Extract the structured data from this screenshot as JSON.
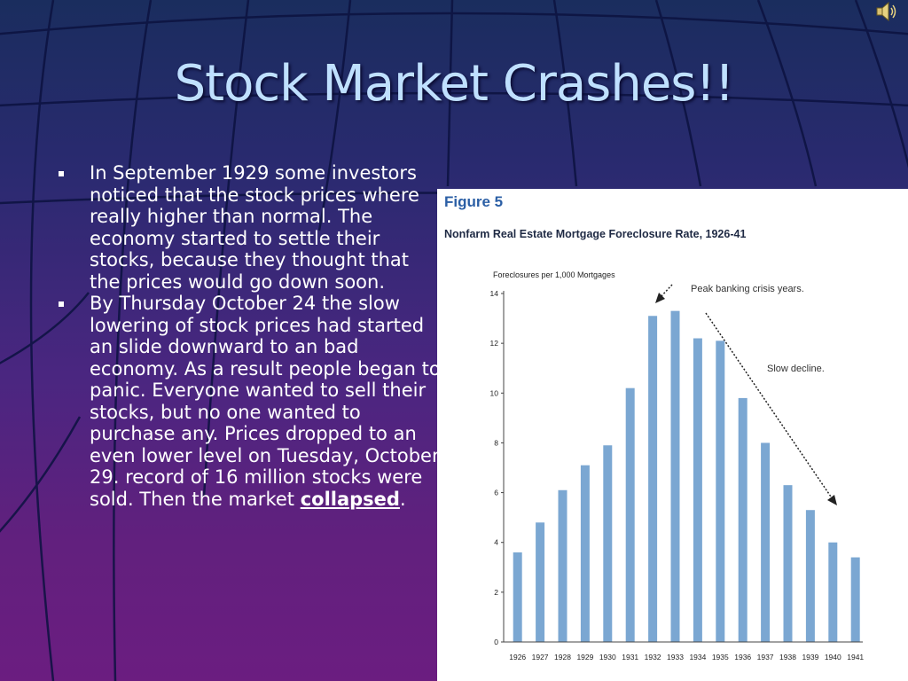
{
  "slide": {
    "title": "Stock Market Crashes!!",
    "bullets": [
      {
        "text": "In September 1929 some investors  noticed that the stock prices where really higher than normal. The economy started to settle their stocks, because they thought that the prices would go down soon."
      },
      {
        "text": "By Thursday October 24 the slow lowering of stock prices had started an slide downward to an bad economy. As a result people began to panic. Everyone wanted to sell their stocks, but no one wanted to purchase any. Prices dropped to an even lower level on Tuesday, October 29.  record of 16 million stocks were sold. Then the market ",
        "link": "collapsed",
        "after": "."
      }
    ],
    "speaker_icon": "speaker-icon"
  },
  "figure": {
    "label": "Figure 5",
    "title": "Nonfarm Real Estate Mortgage Foreclosure Rate, 1926-41"
  },
  "colors": {
    "bar": "#7ba7d2",
    "title": "#bfe0ff",
    "figure_label": "#2b5fa5"
  },
  "chart_data": {
    "type": "bar",
    "ylabel": "Foreclosures per 1,000 Mortgages",
    "categories": [
      "1926",
      "1927",
      "1928",
      "1929",
      "1930",
      "1931",
      "1932",
      "1933",
      "1934",
      "1935",
      "1936",
      "1937",
      "1938",
      "1939",
      "1940",
      "1941"
    ],
    "values": [
      3.6,
      4.8,
      6.1,
      7.1,
      7.9,
      10.2,
      13.1,
      13.3,
      12.2,
      12.1,
      9.8,
      8.0,
      6.3,
      5.3,
      4.0,
      3.4
    ],
    "ylim": [
      0,
      14
    ],
    "yticks": [
      0,
      2,
      4,
      6,
      8,
      10,
      12,
      14
    ],
    "annotations": [
      {
        "text": "Peak banking crisis years."
      },
      {
        "text": "Slow decline."
      }
    ],
    "grid": false,
    "legend": "none"
  }
}
